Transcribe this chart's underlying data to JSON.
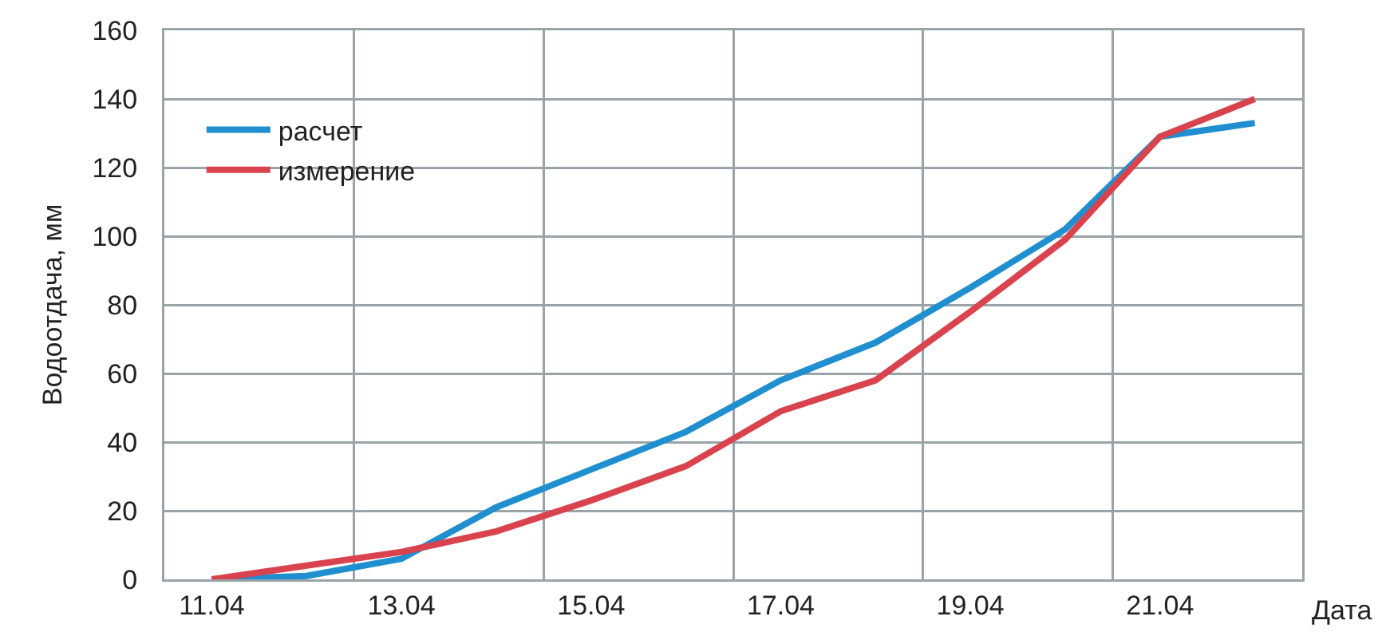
{
  "chart_data": {
    "type": "line",
    "xlabel": "Дата",
    "ylabel": "Водоотдача, мм",
    "categories": [
      "11.04",
      null,
      "13.04",
      null,
      "15.04",
      null,
      "17.04",
      null,
      "19.04",
      null,
      "21.04",
      null
    ],
    "series": [
      {
        "name": "расчет",
        "color": "#1f8fcf",
        "values": [
          0,
          1,
          6,
          21,
          32,
          43,
          58,
          69,
          85,
          102,
          129,
          133
        ]
      },
      {
        "name": "измерение",
        "color": "#d9434e",
        "values": [
          0,
          4,
          8,
          14,
          23,
          33,
          49,
          58,
          78,
          99,
          129,
          140
        ]
      }
    ],
    "ylim": [
      0,
      160
    ],
    "yticks": [
      0,
      20,
      40,
      60,
      80,
      100,
      120,
      140,
      160
    ],
    "grid": true,
    "legend": "top left",
    "marker": "none",
    "line_style": "solid"
  }
}
